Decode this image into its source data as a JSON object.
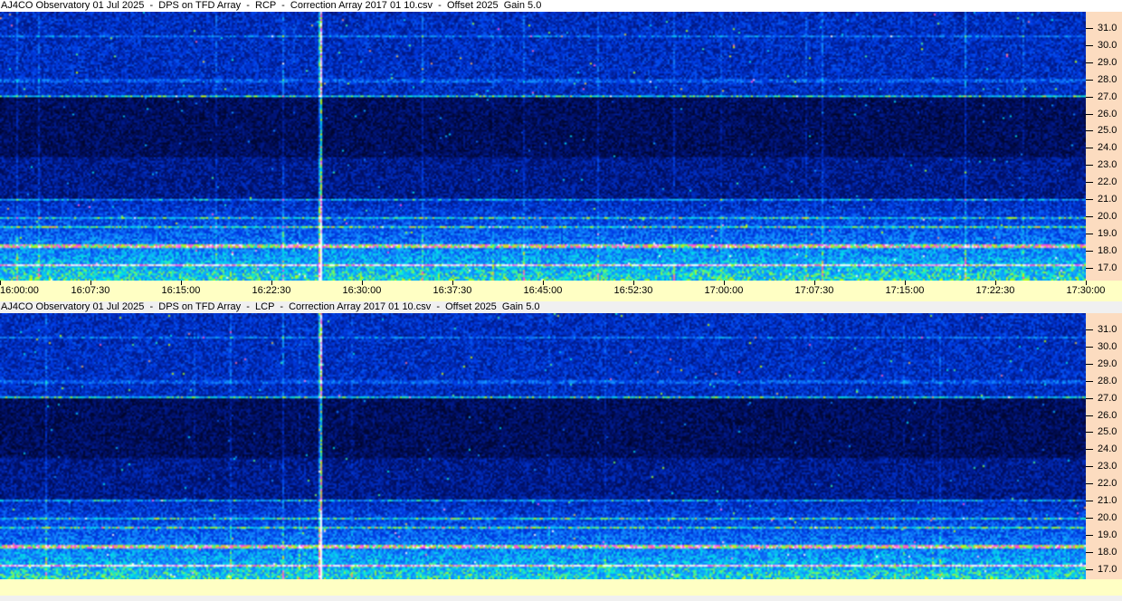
{
  "panels": [
    {
      "title": "AJ4CO Observatory 01 Jul 2025  -  DPS on TFD Array  -  RCP  -  Correction Array 2017 01 10.csv  -  Offset 2025  Gain 5.0",
      "polarization": "RCP",
      "freq_ticks": [
        "31.0",
        "30.0",
        "29.0",
        "28.0",
        "27.0",
        "26.0",
        "25.0",
        "24.0",
        "23.0",
        "22.0",
        "21.0",
        "20.0",
        "19.0",
        "18.0",
        "17.0"
      ],
      "time_ticks": [
        "16:00:00",
        "16:07:30",
        "16:15:00",
        "16:22:30",
        "16:30:00",
        "16:37:30",
        "16:45:00",
        "16:52:30",
        "17:00:00",
        "17:07:30",
        "17:15:00",
        "17:22:30",
        "17:30:00"
      ]
    },
    {
      "title": "AJ4CO Observatory 01 Jul 2025  -  DPS on TFD Array  -  LCP  -  Correction Array 2017 01 10.csv  -  Offset 2025  Gain 5.0",
      "polarization": "LCP",
      "freq_ticks": [
        "31.0",
        "30.0",
        "29.0",
        "28.0",
        "27.0",
        "26.0",
        "25.0",
        "24.0",
        "23.0",
        "22.0",
        "21.0",
        "20.0",
        "19.0",
        "18.0",
        "17.0"
      ],
      "time_ticks": []
    }
  ],
  "colors": {
    "axis_bg_freq": "#fcdcc0",
    "axis_bg_time": "#ffffc4",
    "spectrogram_low": "#000010",
    "spectrogram_mid": "#0040ff",
    "spectrogram_high": "#ffff00"
  }
}
